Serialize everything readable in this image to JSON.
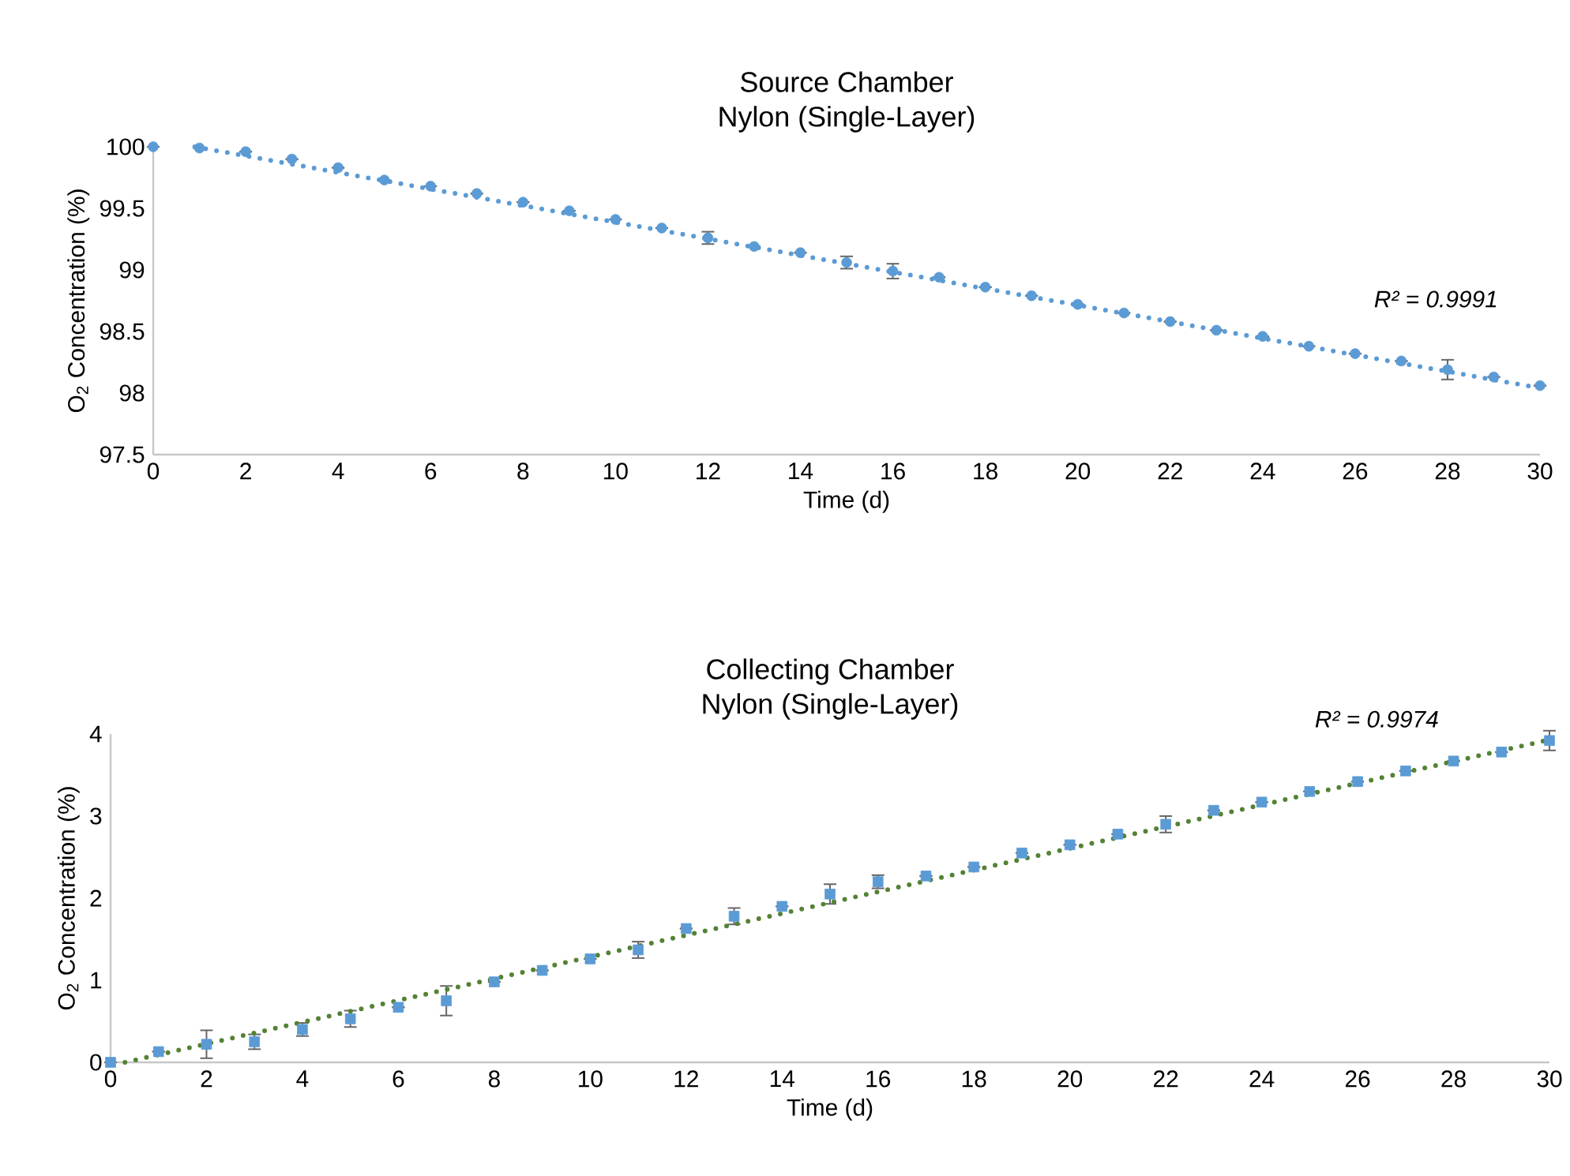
{
  "chart_data": [
    {
      "type": "scatter",
      "title": "Source Chamber",
      "subtitle": "Nylon (Single-Layer)",
      "xlabel": "Time (d)",
      "ylabel": "O$_{2}$ Concentration (%)",
      "x": [
        0,
        1,
        2,
        3,
        4,
        5,
        6,
        7,
        8,
        9,
        10,
        11,
        12,
        13,
        14,
        15,
        16,
        17,
        18,
        19,
        20,
        21,
        22,
        23,
        24,
        25,
        26,
        27,
        28,
        29,
        30
      ],
      "series": [
        {
          "color": "#5b9bd5",
          "marker": "circle",
          "values": [
            100.0,
            99.99,
            99.96,
            99.9,
            99.83,
            99.73,
            99.68,
            99.62,
            99.55,
            99.48,
            99.41,
            99.34,
            99.26,
            99.19,
            99.14,
            99.06,
            98.99,
            98.94,
            98.86,
            98.79,
            98.72,
            98.65,
            98.58,
            98.51,
            98.46,
            98.38,
            98.32,
            98.26,
            98.19,
            98.13,
            98.06
          ],
          "errors": [
            null,
            null,
            null,
            null,
            null,
            null,
            null,
            null,
            null,
            null,
            null,
            null,
            0.05,
            null,
            null,
            0.05,
            0.06,
            null,
            null,
            null,
            null,
            null,
            null,
            null,
            null,
            null,
            null,
            null,
            0.08,
            null,
            null
          ]
        },
        {
          "type": "line",
          "line_style": "dotted",
          "color": "#5b9bd5",
          "x": [
            0.9,
            30
          ],
          "values": [
            100.0,
            98.04
          ]
        }
      ],
      "xlim": [
        0,
        30
      ],
      "xticks": [
        0,
        2,
        4,
        6,
        8,
        10,
        12,
        14,
        16,
        18,
        20,
        22,
        24,
        26,
        28,
        30
      ],
      "ylim": [
        97.5,
        100
      ],
      "yticks": [
        97.5,
        98,
        98.5,
        99,
        99.5,
        100
      ],
      "annotations": [
        "R² = 0.9991"
      ]
    },
    {
      "type": "scatter",
      "title": "Collecting Chamber",
      "subtitle": "Nylon (Single-Layer)",
      "xlabel": "Time (d)",
      "ylabel": "O$_{2}$ Concentration (%)",
      "x": [
        0,
        1,
        2,
        3,
        4,
        5,
        6,
        7,
        8,
        9,
        10,
        11,
        12,
        13,
        14,
        15,
        16,
        17,
        18,
        19,
        20,
        21,
        22,
        23,
        24,
        25,
        26,
        27,
        28,
        29,
        30
      ],
      "series": [
        {
          "color": "#5b9bd5",
          "marker": "square",
          "values": [
            0,
            0.13,
            0.22,
            0.25,
            0.4,
            0.53,
            0.67,
            0.75,
            0.98,
            1.12,
            1.26,
            1.37,
            1.63,
            1.78,
            1.9,
            2.05,
            2.2,
            2.27,
            2.38,
            2.55,
            2.65,
            2.78,
            2.9,
            3.07,
            3.17,
            3.3,
            3.42,
            3.55,
            3.67,
            3.78,
            3.92
          ],
          "errors": [
            null,
            null,
            0.17,
            0.09,
            0.08,
            0.1,
            null,
            0.18,
            null,
            null,
            null,
            0.1,
            null,
            0.1,
            null,
            0.12,
            0.08,
            null,
            null,
            null,
            null,
            null,
            0.1,
            null,
            null,
            null,
            null,
            null,
            null,
            null,
            0.12
          ]
        },
        {
          "type": "line",
          "line_style": "dotted",
          "color": "#548235",
          "x": [
            0.3,
            30
          ],
          "values": [
            0,
            3.93
          ]
        }
      ],
      "xlim": [
        0,
        30
      ],
      "xticks": [
        0,
        2,
        4,
        6,
        8,
        10,
        12,
        14,
        16,
        18,
        20,
        22,
        24,
        26,
        28,
        30
      ],
      "ylim": [
        0,
        4
      ],
      "yticks": [
        0,
        1,
        2,
        3,
        4
      ],
      "annotations": [
        "R² = 0.9974"
      ]
    }
  ]
}
